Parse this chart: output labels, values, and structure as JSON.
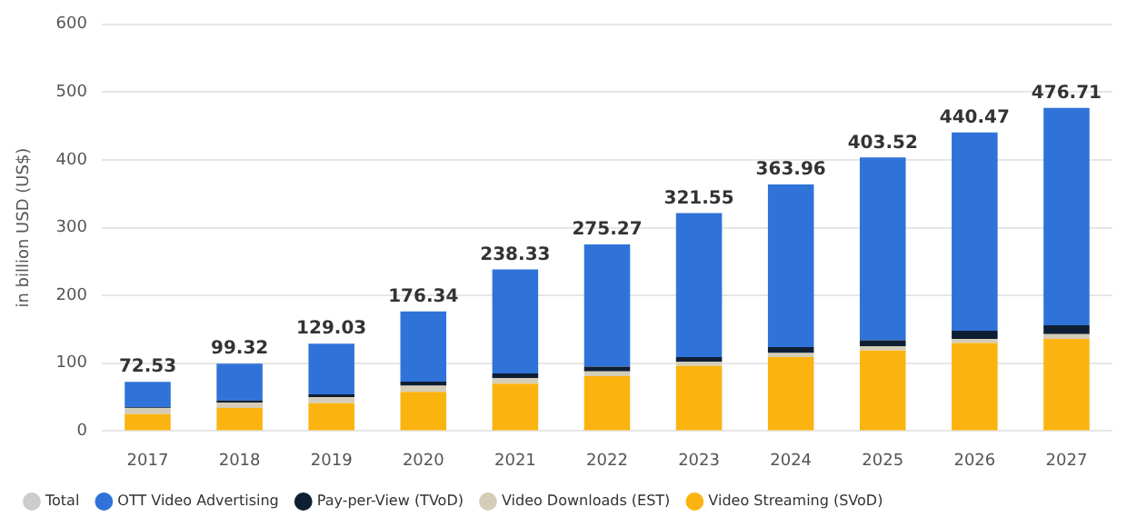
{
  "chart_data": {
    "type": "bar",
    "stacked": true,
    "ylabel": "in billion USD (US$)",
    "categories": [
      "2017",
      "2018",
      "2019",
      "2020",
      "2021",
      "2022",
      "2023",
      "2024",
      "2025",
      "2026",
      "2027"
    ],
    "series": [
      {
        "name": "Video Streaming (SVoD)",
        "color": "#fbb40f",
        "values": [
          25,
          34,
          41,
          58,
          70,
          81,
          96,
          109,
          119,
          130,
          136
        ]
      },
      {
        "name": "Video Downloads (EST)",
        "color": "#d4cdb8",
        "values": [
          9,
          8,
          9,
          9,
          8,
          7,
          6,
          6,
          6,
          6,
          7
        ]
      },
      {
        "name": "Pay-per-View (TVoD)",
        "color": "#0f1f33",
        "values": [
          1,
          3,
          4,
          6,
          7,
          7,
          7,
          9,
          9,
          12,
          13
        ]
      },
      {
        "name": "OTT Video Advertising",
        "color": "#2f73d9",
        "values": [
          37.53,
          54.32,
          75.03,
          103.34,
          153.33,
          180.27,
          212.55,
          239.96,
          269.52,
          292.47,
          320.71
        ]
      },
      {
        "name": "Total",
        "color": "#cccccc",
        "values": [
          null,
          null,
          null,
          null,
          null,
          null,
          null,
          null,
          null,
          null,
          null
        ]
      }
    ],
    "totals": [
      "72.53",
      "99.32",
      "129.03",
      "176.34",
      "238.33",
      "275.27",
      "321.55",
      "363.96",
      "403.52",
      "440.47",
      "476.71"
    ],
    "ylim": [
      0,
      600
    ],
    "yticks": [
      0,
      100,
      200,
      300,
      400,
      500,
      600
    ],
    "grid": "y",
    "legend": "bottom"
  }
}
